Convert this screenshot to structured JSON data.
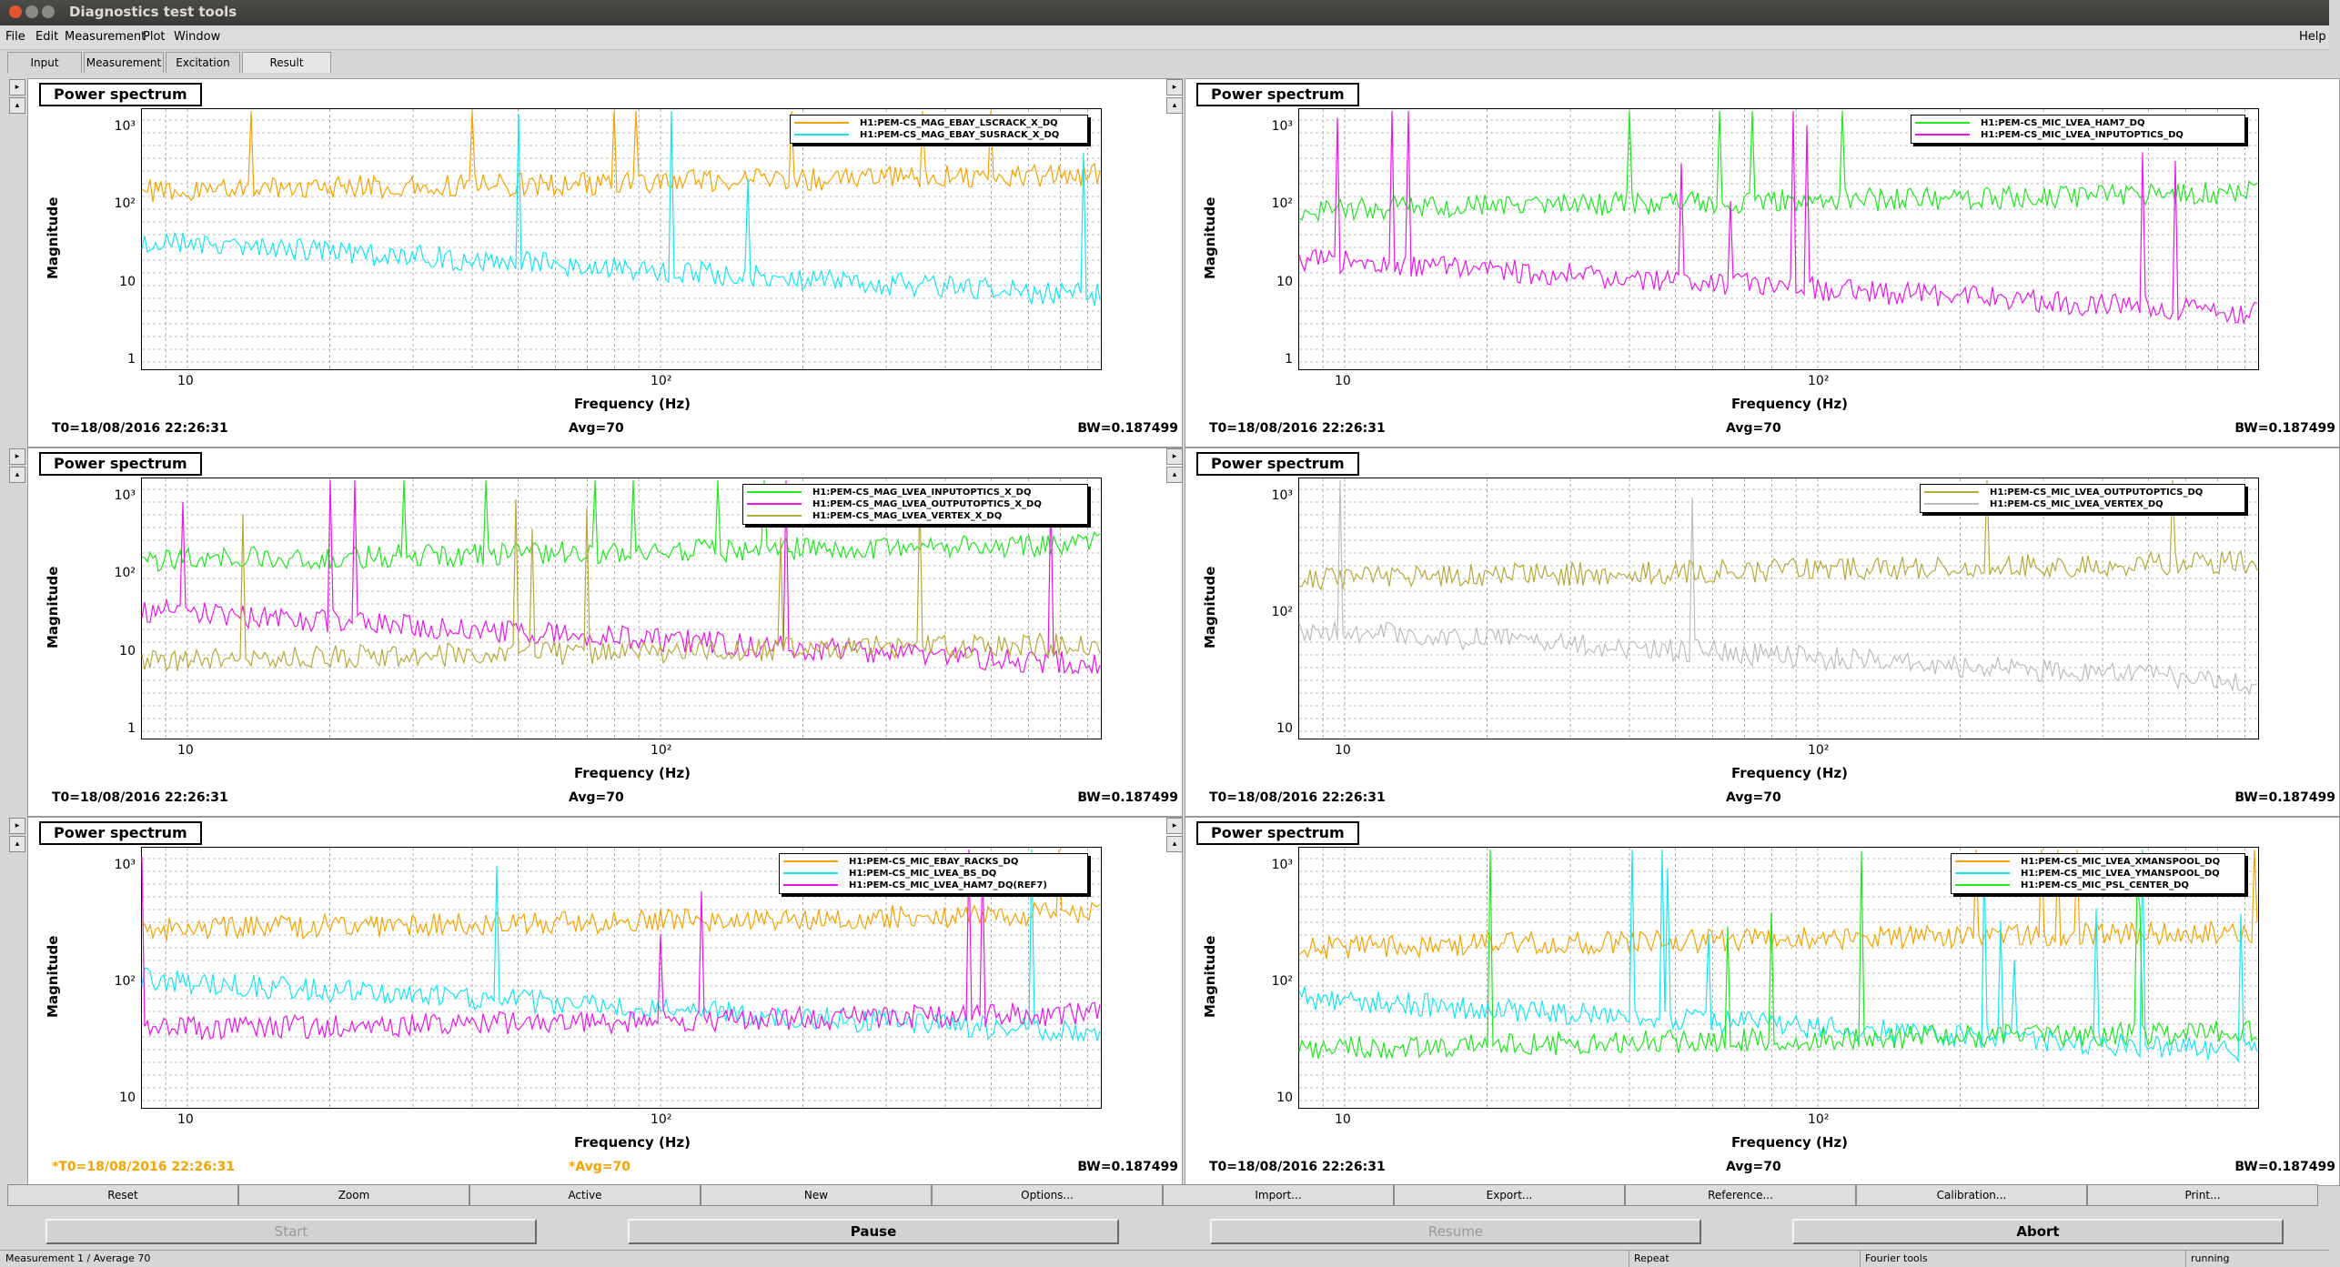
{
  "window": {
    "title": "Diagnostics test tools"
  },
  "menu": {
    "file": "File",
    "edit": "Edit",
    "measurement": "Measurement",
    "plot": "Plot",
    "window": "Window",
    "help": "Help"
  },
  "tabs": [
    "Input",
    "Measurement",
    "Excitation",
    "Result"
  ],
  "active_tab": "Result",
  "panels": [
    {
      "title": "Power spectrum",
      "ylabel": "Magnitude",
      "xlabel": "Frequency (Hz)",
      "yticks": [
        "1",
        "10",
        "10²",
        "10³"
      ],
      "xticks": [
        "10",
        "10²"
      ],
      "t0": "T0=18/08/2016 22:26:31",
      "avg": "Avg=70",
      "bw": "BW=0.187499",
      "ref": false,
      "legend": [
        {
          "name": "H1:PEM-CS_MAG_EBAY_LSCRACK_X_DQ",
          "color": "#f5a300"
        },
        {
          "name": "H1:PEM-CS_MAG_EBAY_SUSRACK_X_DQ",
          "color": "#16e6f2"
        }
      ]
    },
    {
      "title": "Power spectrum",
      "ylabel": "Magnitude",
      "xlabel": "Frequency (Hz)",
      "yticks": [
        "1",
        "10",
        "10²",
        "10³"
      ],
      "xticks": [
        "10",
        "10²"
      ],
      "t0": "T0=18/08/2016 22:26:31",
      "avg": "Avg=70",
      "bw": "BW=0.187499",
      "ref": false,
      "legend": [
        {
          "name": "H1:PEM-CS_MIC_LVEA_HAM7_DQ",
          "color": "#1ee81e"
        },
        {
          "name": "H1:PEM-CS_MIC_LVEA_INPUTOPTICS_DQ",
          "color": "#ea16ea"
        }
      ]
    },
    {
      "title": "Power spectrum",
      "ylabel": "Magnitude",
      "xlabel": "Frequency (Hz)",
      "yticks": [
        "1",
        "10",
        "10²",
        "10³"
      ],
      "xticks": [
        "10",
        "10²"
      ],
      "t0": "T0=18/08/2016 22:26:31",
      "avg": "Avg=70",
      "bw": "BW=0.187499",
      "ref": false,
      "legend": [
        {
          "name": "H1:PEM-CS_MAG_LVEA_INPUTOPTICS_X_DQ",
          "color": "#1ee81e"
        },
        {
          "name": "H1:PEM-CS_MAG_LVEA_OUTPUTOPTICS_X_DQ",
          "color": "#ea16ea"
        },
        {
          "name": "H1:PEM-CS_MAG_LVEA_VERTEX_X_DQ",
          "color": "#b7a83c"
        }
      ]
    },
    {
      "title": "Power spectrum",
      "ylabel": "Magnitude",
      "xlabel": "Frequency (Hz)",
      "yticks": [
        "10",
        "10²",
        "10³"
      ],
      "xticks": [
        "10",
        "10²"
      ],
      "t0": "T0=18/08/2016 22:26:31",
      "avg": "Avg=70",
      "bw": "BW=0.187499",
      "ref": false,
      "legend": [
        {
          "name": "H1:PEM-CS_MIC_LVEA_OUTPUTOPTICS_DQ",
          "color": "#b7a83c"
        },
        {
          "name": "H1:PEM-CS_MIC_LVEA_VERTEX_DQ",
          "color": "#bdbdbd"
        }
      ]
    },
    {
      "title": "Power spectrum",
      "ylabel": "Magnitude",
      "xlabel": "Frequency (Hz)",
      "yticks": [
        "10",
        "10²",
        "10³"
      ],
      "xticks": [
        "10",
        "10²"
      ],
      "t0": "*T0=18/08/2016 22:26:31",
      "avg": "*Avg=70",
      "bw": "BW=0.187499",
      "ref": true,
      "legend": [
        {
          "name": "H1:PEM-CS_MIC_EBAY_RACKS_DQ",
          "color": "#f5a300"
        },
        {
          "name": "H1:PEM-CS_MIC_LVEA_BS_DQ",
          "color": "#16e6f2"
        },
        {
          "name": "H1:PEM-CS_MIC_LVEA_HAM7_DQ(REF7)",
          "color": "#ea16ea"
        }
      ]
    },
    {
      "title": "Power spectrum",
      "ylabel": "Magnitude",
      "xlabel": "Frequency (Hz)",
      "yticks": [
        "10",
        "10²",
        "10³"
      ],
      "xticks": [
        "10",
        "10²"
      ],
      "t0": "T0=18/08/2016 22:26:31",
      "avg": "Avg=70",
      "bw": "BW=0.187499",
      "ref": false,
      "legend": [
        {
          "name": "H1:PEM-CS_MIC_LVEA_XMANSPOOL_DQ",
          "color": "#f5a300"
        },
        {
          "name": "H1:PEM-CS_MIC_LVEA_YMANSPOOL_DQ",
          "color": "#16e6f2"
        },
        {
          "name": "H1:PEM-CS_MIC_PSL_CENTER_DQ",
          "color": "#1ee81e"
        }
      ]
    }
  ],
  "buttons": [
    "Reset",
    "Zoom",
    "Active",
    "New",
    "Options...",
    "Import...",
    "Export...",
    "Reference...",
    "Calibration...",
    "Print..."
  ],
  "controls": {
    "start": "Start",
    "pause": "Pause",
    "resume": "Resume",
    "abort": "Abort"
  },
  "status": {
    "left": "Measurement 1 / Average 70",
    "repeat": "Repeat",
    "tool": "Fourier tools",
    "state": "running"
  }
}
